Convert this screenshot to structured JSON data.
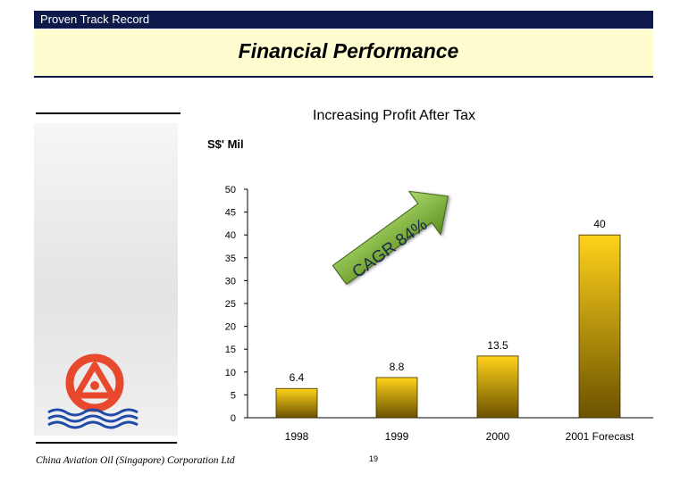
{
  "header": {
    "section_label": "Proven Track Record",
    "title": "Financial Performance"
  },
  "chart_heading": "Increasing Profit After Tax",
  "unit_label": "S$' Mil",
  "growth_label": "CAGR 84%",
  "footer": {
    "company": "China Aviation Oil (Singapore) Corporation Ltd",
    "page_number": "19"
  },
  "colors": {
    "header_band": "#0d1a4a",
    "title_band": "#fffdd0",
    "bar_top": "#ffd21a",
    "bar_bottom": "#6b5200",
    "arrow_top": "#a8d96a",
    "arrow_bottom": "#5f8f1f",
    "logo_red": "#e8482c",
    "logo_blue": "#1f4aa8"
  },
  "chart_data": {
    "type": "bar",
    "title": "Increasing Profit After Tax",
    "ylabel": "S$' Mil",
    "xlabel": "",
    "categories": [
      "1998",
      "1999",
      "2000",
      "2001 Forecast"
    ],
    "values": [
      6.4,
      8.8,
      13.5,
      40
    ],
    "data_labels": [
      "6.4",
      "8.8",
      "13.5",
      "40"
    ],
    "ylim": [
      0,
      50
    ],
    "yticks": [
      0,
      5,
      10,
      15,
      20,
      25,
      30,
      35,
      40,
      45,
      50
    ],
    "grid": false,
    "annotation": "CAGR 84%"
  }
}
